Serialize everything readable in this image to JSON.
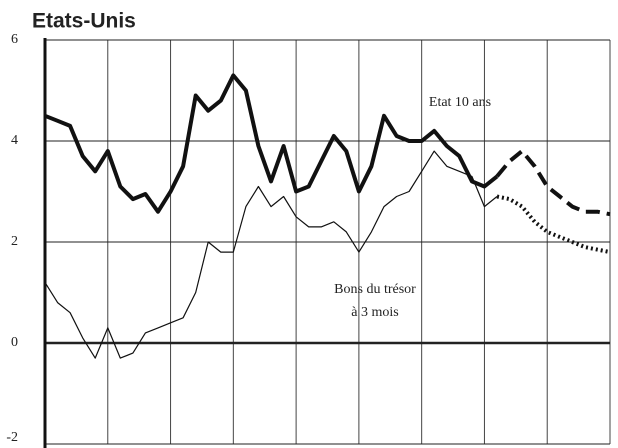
{
  "chart_data": {
    "type": "line",
    "title": "Etats-Unis",
    "categories": [
      null,
      null,
      null,
      null,
      null,
      null,
      null,
      null,
      null,
      null,
      null,
      null,
      null,
      null,
      null,
      null,
      null,
      null,
      null,
      null,
      null,
      null,
      null,
      null,
      null,
      null,
      null,
      null,
      null,
      null,
      null,
      null,
      null,
      null,
      null,
      null,
      null,
      null,
      null,
      null,
      null,
      null,
      null,
      null,
      null,
      null
    ],
    "series": [
      {
        "name": "Etat 10 ans",
        "color": "#111111",
        "style": "solid",
        "weight": "bold",
        "values": [
          4.5,
          4.4,
          4.3,
          3.7,
          3.4,
          3.8,
          3.1,
          2.85,
          2.95,
          2.6,
          3.0,
          3.5,
          4.9,
          4.6,
          4.8,
          5.3,
          5.0,
          3.9,
          3.2,
          3.9,
          3.0,
          3.1,
          3.6,
          4.1,
          3.8,
          3.0,
          3.5,
          4.5,
          4.1,
          4.0,
          4.0,
          4.2,
          3.9,
          3.7,
          3.2,
          3.1,
          3.3,
          null,
          null,
          null,
          null,
          null,
          null,
          null,
          null,
          null
        ]
      },
      {
        "color": "#111111",
        "style": "dashed",
        "weight": "bold",
        "values": [
          null,
          null,
          null,
          null,
          null,
          null,
          null,
          null,
          null,
          null,
          null,
          null,
          null,
          null,
          null,
          null,
          null,
          null,
          null,
          null,
          null,
          null,
          null,
          null,
          null,
          null,
          null,
          null,
          null,
          null,
          null,
          null,
          null,
          null,
          null,
          null,
          3.3,
          3.6,
          3.8,
          3.5,
          3.1,
          2.9,
          2.7,
          2.6,
          2.6,
          2.55
        ]
      },
      {
        "name": "Bons du trésor à 3 mois",
        "color": "#111111",
        "style": "solid",
        "weight": "normal",
        "values": [
          1.2,
          0.8,
          0.6,
          0.1,
          -0.3,
          0.3,
          -0.3,
          -0.2,
          0.2,
          0.3,
          0.4,
          0.5,
          1.0,
          2.0,
          1.8,
          1.8,
          2.7,
          3.1,
          2.7,
          2.9,
          2.5,
          2.3,
          2.3,
          2.4,
          2.2,
          1.8,
          2.2,
          2.7,
          2.9,
          3.0,
          3.4,
          3.8,
          3.5,
          3.4,
          3.3,
          2.7,
          2.9,
          null,
          null,
          null,
          null,
          null,
          null,
          null,
          null,
          null
        ]
      },
      {
        "color": "#111111",
        "style": "dotted",
        "weight": "bold",
        "values": [
          null,
          null,
          null,
          null,
          null,
          null,
          null,
          null,
          null,
          null,
          null,
          null,
          null,
          null,
          null,
          null,
          null,
          null,
          null,
          null,
          null,
          null,
          null,
          null,
          null,
          null,
          null,
          null,
          null,
          null,
          null,
          null,
          null,
          null,
          null,
          null,
          2.9,
          2.85,
          2.7,
          2.4,
          2.2,
          2.1,
          2.0,
          1.9,
          1.85,
          1.8
        ]
      }
    ],
    "annotations": [
      "Etat 10 ans",
      "Bons du trésor",
      "à 3 mois"
    ],
    "ylim": [
      -2,
      6
    ],
    "yticks": [
      -2,
      0,
      2,
      4,
      6
    ],
    "grid": true
  }
}
